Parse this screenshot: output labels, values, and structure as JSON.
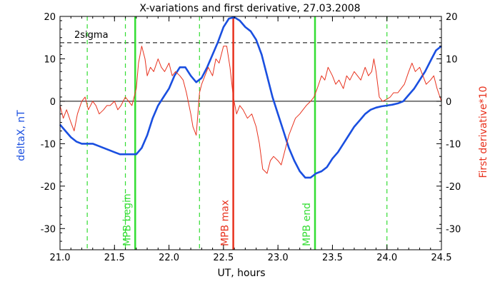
{
  "chart_data": {
    "type": "line",
    "title": "X-variations and first derivative, 27.03.2008",
    "xlabel": "UT, hours",
    "ylabel_left": "deltaX, nT",
    "ylabel_right": "First derivative*10",
    "xlim": [
      21.0,
      24.5
    ],
    "ylim": [
      -35,
      20
    ],
    "x_ticks": [
      "21.0",
      "21.5",
      "22.0",
      "22.5",
      "23.0",
      "23.5",
      "24.0",
      "24.5"
    ],
    "y_ticks_left": [
      "20",
      "10",
      "0",
      "-10",
      "-20",
      "-30"
    ],
    "y_ticks_right": [
      "20",
      "10",
      "0",
      "-10",
      "-20",
      "-30"
    ],
    "colors": {
      "deltaX": "#1a4fe0",
      "derivative": "#e8321e",
      "green_markers": "#33dd33",
      "mpb_max": "#e8321e",
      "sigma_line": "#000000"
    },
    "reference_line": {
      "label": "2sigma",
      "y": 13.8
    },
    "zero_line": {
      "y": 0
    },
    "vertical_markers": [
      {
        "x": 21.25,
        "style": "dashed",
        "color": "#33dd33",
        "label": ""
      },
      {
        "x": 21.6,
        "style": "dashed",
        "color": "#33dd33",
        "label": ""
      },
      {
        "x": 21.69,
        "style": "solid",
        "color": "#33dd33",
        "label": "MPB begin"
      },
      {
        "x": 22.28,
        "style": "dashed",
        "color": "#33dd33",
        "label": ""
      },
      {
        "x": 22.59,
        "style": "solid",
        "color": "#e8321e",
        "label": "MPB max"
      },
      {
        "x": 23.34,
        "style": "solid",
        "color": "#33dd33",
        "label": "MPB end"
      },
      {
        "x": 24.0,
        "style": "dashed",
        "color": "#33dd33",
        "label": ""
      }
    ],
    "series": [
      {
        "key": "deltaX",
        "x": [
          21.0,
          21.05,
          21.1,
          21.15,
          21.2,
          21.25,
          21.3,
          21.35,
          21.4,
          21.45,
          21.5,
          21.55,
          21.6,
          21.65,
          21.7,
          21.75,
          21.8,
          21.85,
          21.9,
          21.95,
          22.0,
          22.05,
          22.1,
          22.15,
          22.2,
          22.25,
          22.3,
          22.35,
          22.4,
          22.45,
          22.5,
          22.55,
          22.6,
          22.65,
          22.7,
          22.75,
          22.8,
          22.85,
          22.9,
          22.95,
          23.0,
          23.05,
          23.1,
          23.15,
          23.2,
          23.25,
          23.3,
          23.35,
          23.4,
          23.45,
          23.5,
          23.55,
          23.6,
          23.65,
          23.7,
          23.75,
          23.8,
          23.85,
          23.9,
          23.95,
          24.0,
          24.05,
          24.1,
          24.15,
          24.2,
          24.25,
          24.3,
          24.35,
          24.4,
          24.45,
          24.5
        ],
        "values": [
          -5.5,
          -7,
          -8.5,
          -9.5,
          -10,
          -10,
          -10,
          -10.5,
          -11,
          -11.5,
          -12,
          -12.5,
          -12.5,
          -12.5,
          -12.5,
          -11,
          -8,
          -4,
          -1,
          1,
          3,
          6,
          8,
          8,
          6,
          4.5,
          5.5,
          8,
          11,
          14,
          17.5,
          19.5,
          19.8,
          19,
          17.5,
          16.5,
          14.5,
          11,
          6,
          1,
          -3,
          -7,
          -11,
          -14,
          -16.5,
          -18,
          -18,
          -17,
          -16.5,
          -15.5,
          -13.5,
          -12,
          -10,
          -8,
          -6,
          -4.5,
          -3,
          -2,
          -1.5,
          -1.2,
          -1,
          -0.8,
          -0.5,
          0,
          1.5,
          3,
          5,
          7,
          9.5,
          12,
          13
        ]
      },
      {
        "key": "derivative",
        "x": [
          21.0,
          21.03,
          21.06,
          21.1,
          21.13,
          21.16,
          21.2,
          21.23,
          21.26,
          21.3,
          21.33,
          21.36,
          21.4,
          21.43,
          21.46,
          21.5,
          21.53,
          21.56,
          21.6,
          21.63,
          21.66,
          21.7,
          21.72,
          21.75,
          21.78,
          21.8,
          21.83,
          21.86,
          21.9,
          21.93,
          21.96,
          22.0,
          22.03,
          22.06,
          22.1,
          22.13,
          22.16,
          22.2,
          22.22,
          22.25,
          22.28,
          22.3,
          22.33,
          22.36,
          22.4,
          22.43,
          22.46,
          22.5,
          22.53,
          22.56,
          22.59,
          22.62,
          22.65,
          22.68,
          22.72,
          22.76,
          22.8,
          22.83,
          22.86,
          22.9,
          22.93,
          22.96,
          23.0,
          23.03,
          23.06,
          23.1,
          23.13,
          23.16,
          23.2,
          23.23,
          23.26,
          23.3,
          23.33,
          23.36,
          23.4,
          23.43,
          23.46,
          23.5,
          23.53,
          23.56,
          23.6,
          23.63,
          23.66,
          23.7,
          23.73,
          23.76,
          23.8,
          23.83,
          23.86,
          23.88,
          23.9,
          23.93,
          23.96,
          24.0,
          24.03,
          24.06,
          24.1,
          24.13,
          24.16,
          24.2,
          24.23,
          24.26,
          24.3,
          24.33,
          24.36,
          24.4,
          24.43,
          24.46,
          24.5
        ],
        "values": [
          -1,
          -4,
          -2,
          -5,
          -7,
          -3,
          0,
          1,
          -2,
          0,
          -1,
          -3,
          -2,
          -1,
          -1,
          0,
          -2,
          -1,
          1,
          0,
          -1,
          3,
          9,
          13,
          10,
          6,
          8,
          7,
          10,
          8,
          7,
          9,
          6,
          7,
          6,
          5,
          2,
          -3,
          -6,
          -8,
          2,
          4,
          6,
          8,
          6,
          10,
          9,
          13,
          13,
          8,
          1,
          -3,
          -1,
          -2,
          -4,
          -3,
          -6,
          -10,
          -16,
          -17,
          -14,
          -13,
          -14,
          -15,
          -12,
          -8,
          -6,
          -4,
          -3,
          -2,
          -1,
          0,
          1,
          3,
          6,
          5,
          8,
          6,
          4,
          5,
          3,
          6,
          5,
          7,
          6,
          5,
          8,
          6,
          7,
          10,
          7,
          1,
          0,
          0.5,
          1,
          2,
          2,
          3,
          4,
          7,
          9,
          7,
          8,
          6,
          4,
          5,
          6,
          3,
          0
        ]
      }
    ]
  }
}
